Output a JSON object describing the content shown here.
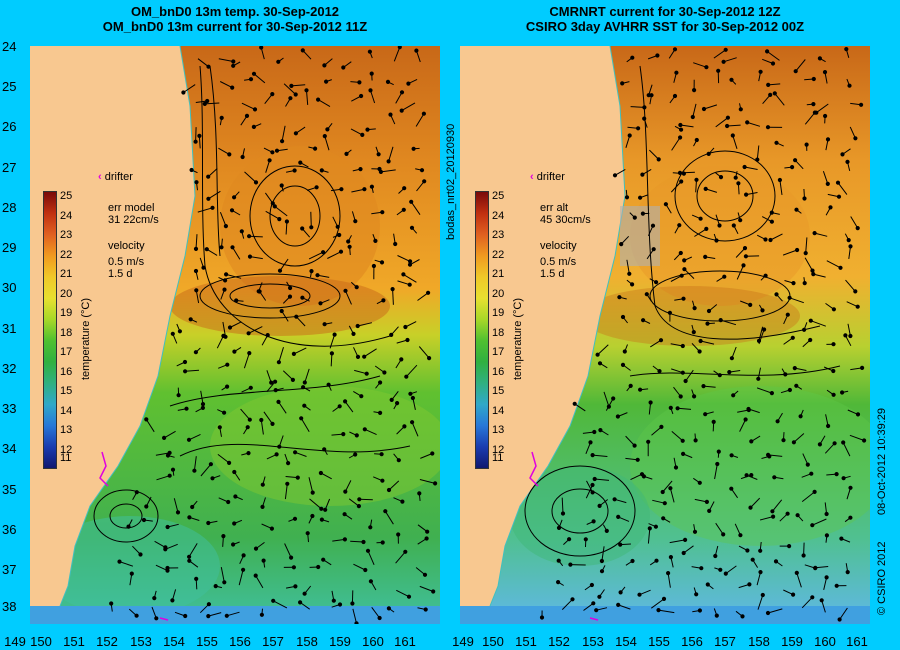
{
  "titles": {
    "left_line1": "OM_bnD0 13m temp. 30-Sep-2012",
    "left_line2": "OM_bnD0 13m current for 30-Sep-2012 11Z",
    "right_line1": "CMRNRT current for 30-Sep-2012 12Z",
    "right_line2": "CSIRO 3day AVHRR SST for 30-Sep-2012 00Z"
  },
  "latitude_labels": [
    "24",
    "25",
    "26",
    "27",
    "28",
    "29",
    "30",
    "31",
    "32",
    "33",
    "34",
    "35",
    "36",
    "37",
    "38"
  ],
  "longitude_labels": [
    "149",
    "150",
    "151",
    "152",
    "153",
    "154",
    "155",
    "156",
    "157",
    "158",
    "159",
    "160",
    "161"
  ],
  "colorbar": {
    "ticks": [
      "25",
      "24",
      "23",
      "22",
      "21",
      "20",
      "19",
      "18",
      "17",
      "16",
      "15",
      "14",
      "13",
      "12",
      "11"
    ],
    "unit": "temperature (°C)"
  },
  "left_panel": {
    "drifter": "drifter",
    "err_label": "err model",
    "err_value": "31 22cm/s",
    "velocity_label": "velocity",
    "velocity_scale": "0.5 m/s",
    "velocity_time": "1.5 d"
  },
  "right_panel": {
    "drifter": "drifter",
    "err_label": "err alt",
    "err_value": "45 30cm/s",
    "velocity_label": "velocity",
    "velocity_scale": "0.5 m/s",
    "velocity_time": "1.5 d"
  },
  "side_text": {
    "run_id": "bodas_nrt02_20120930",
    "timestamp": "08-Oct-2012 10:39:29",
    "copyright": "© CSIRO 2012"
  },
  "colors": {
    "background": "#00ccff",
    "land": "#f8c890",
    "warm": "#e89020",
    "cool": "#30b030",
    "drifter": "#e000e0"
  }
}
